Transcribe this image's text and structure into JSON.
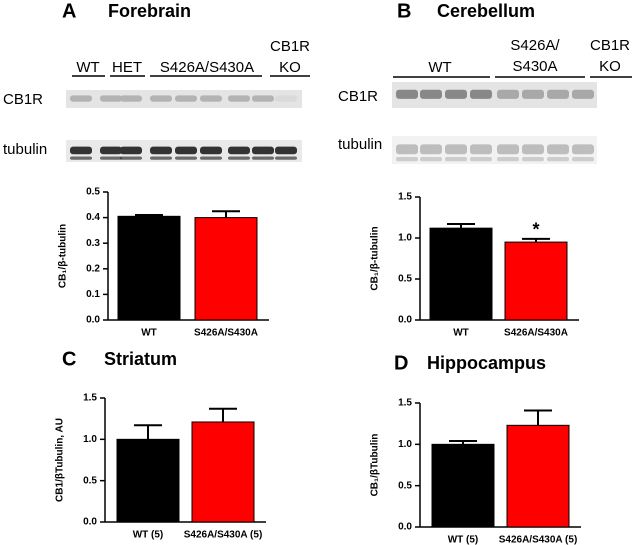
{
  "chart_data": [
    {
      "type": "bar",
      "panel": "A",
      "title": "Forebrain",
      "ylabel": "CB₁/β-tubulin",
      "categories": [
        "WT",
        "S426A/S430A"
      ],
      "values": [
        0.405,
        0.4
      ],
      "errors": [
        0.005,
        0.025
      ],
      "colors": [
        "#000000",
        "#ff0000"
      ],
      "ylim": [
        0,
        0.5
      ],
      "yticks": [
        {
          "value": 0,
          "label": "0.0"
        },
        0.1,
        0.2,
        0.3,
        0.4,
        0.5
      ]
    },
    {
      "type": "bar",
      "panel": "B",
      "title": "Cerebellum",
      "ylabel": "CB₁/β-tubulin",
      "categories": [
        "WT",
        "S426A/S430A"
      ],
      "values": [
        1.12,
        0.95
      ],
      "errors": [
        0.05,
        0.04
      ],
      "colors": [
        "#000000",
        "#ff0000"
      ],
      "annotation": "*",
      "ylim": [
        0,
        1.5
      ],
      "yticks": [
        {
          "value": 0,
          "label": "0.0"
        },
        0.5,
        {
          "value": 1,
          "label": "1.0"
        },
        1.5
      ]
    },
    {
      "type": "bar",
      "panel": "C",
      "title": "Striatum",
      "ylabel": "CB1/βTubulin, AU",
      "categories": [
        "WT (5)",
        "S426A/S430A (5)"
      ],
      "values": [
        1.0,
        1.21
      ],
      "errors": [
        0.17,
        0.16
      ],
      "colors": [
        "#000000",
        "#ff0000"
      ],
      "ylim": [
        0,
        1.5
      ],
      "yticks": [
        {
          "value": 0,
          "label": "0.0"
        },
        0.5,
        {
          "value": 1,
          "label": "1.0"
        },
        1.5
      ]
    },
    {
      "type": "bar",
      "panel": "D",
      "title": "Hippocampus",
      "ylabel": "CB₁/βTubulin",
      "categories": [
        "WT (5)",
        "S426A/S430A (5)"
      ],
      "values": [
        1.0,
        1.23
      ],
      "errors": [
        0.04,
        0.18
      ],
      "colors": [
        "#000000",
        "#ff0000"
      ],
      "ylim": [
        0,
        1.5
      ],
      "yticks": [
        {
          "value": 0,
          "label": "0.0"
        },
        0.5,
        {
          "value": 1,
          "label": "1.0"
        },
        1.5
      ]
    }
  ],
  "blots": [
    {
      "lanes": [
        [
          "WT"
        ],
        [
          "HET"
        ],
        [
          "S426A/S430A"
        ],
        [
          "CB1R",
          "KO"
        ]
      ],
      "rows": [
        "CB1R",
        "tubulin"
      ]
    },
    {
      "lanes": [
        [
          "WT"
        ],
        [
          "S426A/",
          "S430A"
        ],
        [
          "CB1R",
          "KO"
        ]
      ],
      "rows": [
        "CB1R",
        "tubulin"
      ]
    }
  ]
}
